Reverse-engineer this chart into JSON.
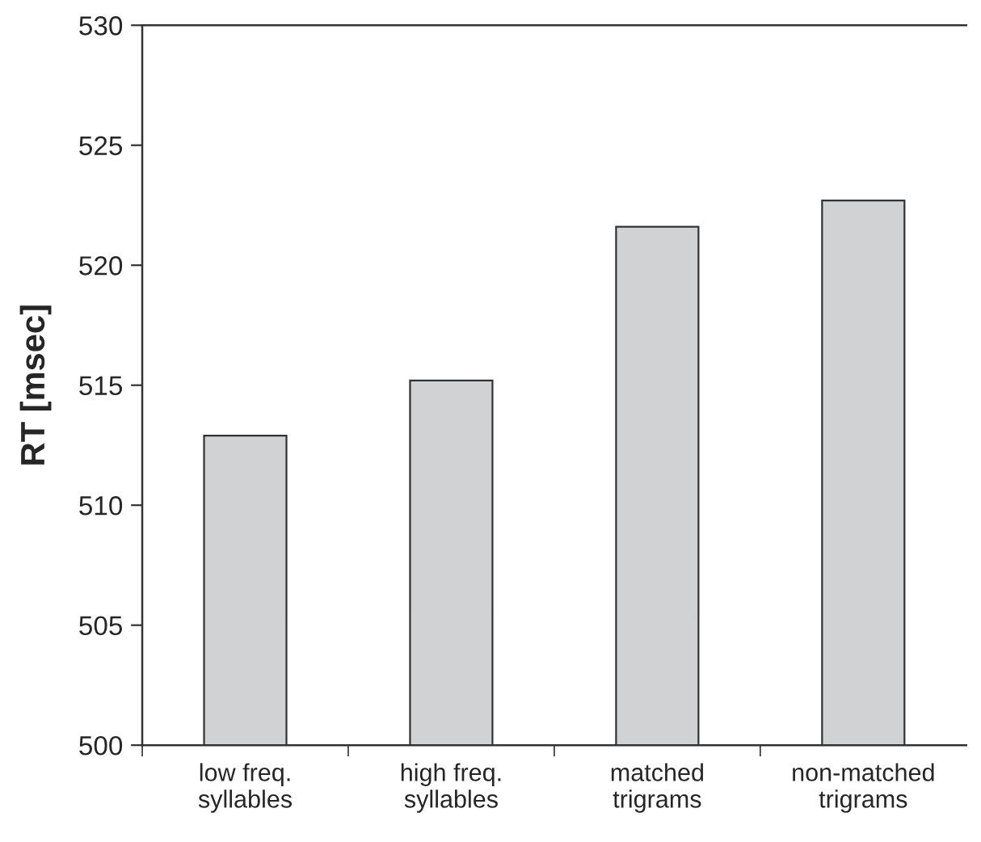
{
  "chart_data": {
    "type": "bar",
    "ylabel": "RT [msec]",
    "categories": [
      "low freq.\nsyllables",
      "high freq.\nsyllables",
      "matched\ntrigrams",
      "non-matched\ntrigrams"
    ],
    "values": [
      512.9,
      515.2,
      521.6,
      522.7
    ],
    "color": "#d1d2d4",
    "ylim": [
      500,
      530
    ],
    "yticks": [
      500,
      505,
      510,
      515,
      520,
      525,
      530
    ],
    "grid": false,
    "legend": false
  }
}
